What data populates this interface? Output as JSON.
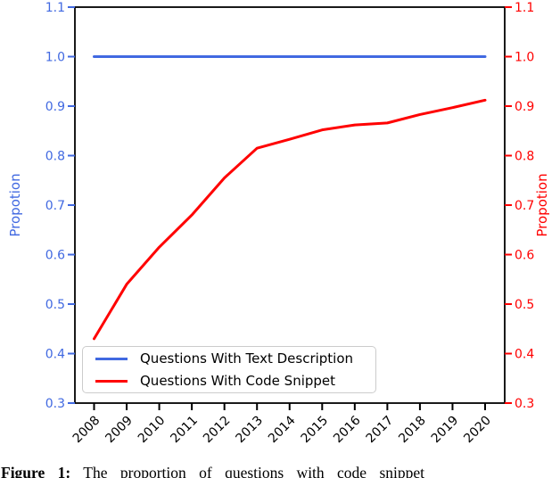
{
  "figure": {
    "caption_label": "Figure 1:",
    "caption_text": "The proportion of questions with code snippet"
  },
  "chart_data": {
    "type": "line",
    "x": [
      2008,
      2009,
      2010,
      2011,
      2012,
      2013,
      2014,
      2015,
      2016,
      2017,
      2018,
      2019,
      2020
    ],
    "x_tick_labels": [
      "2008",
      "2009",
      "2010",
      "2011",
      "2012",
      "2013",
      "2014",
      "2015",
      "2016",
      "2017",
      "2018",
      "2019",
      "2020"
    ],
    "x_tick_rotation": -45,
    "series": [
      {
        "name": "Questions With Text Description",
        "color": "#4169e1",
        "axis": "left",
        "values": [
          1.0,
          1.0,
          1.0,
          1.0,
          1.0,
          1.0,
          1.0,
          1.0,
          1.0,
          1.0,
          1.0,
          1.0,
          1.0
        ]
      },
      {
        "name": "Questions With Code Snippet",
        "color": "#ff0000",
        "axis": "right",
        "values": [
          0.43,
          0.54,
          0.615,
          0.68,
          0.755,
          0.815,
          0.833,
          0.852,
          0.862,
          0.866,
          0.883,
          0.897,
          0.912
        ]
      }
    ],
    "y_left": {
      "label": "Propotion",
      "color": "#4169e1",
      "range": [
        0.3,
        1.1
      ],
      "ticks": [
        "1.1",
        "1.0",
        "0.9",
        "0.8",
        "0.7",
        "0.6",
        "0.5",
        "0.4",
        "0.3"
      ]
    },
    "y_right": {
      "label": "Propotion",
      "color": "#ff0000",
      "range": [
        0.3,
        1.1
      ],
      "ticks": [
        "1.1",
        "1.0",
        "0.9",
        "0.8",
        "0.7",
        "0.6",
        "0.5",
        "0.4",
        "0.3"
      ]
    },
    "grid": false,
    "legend": {
      "position": "lower-left",
      "entries": [
        "Questions With Text Description",
        "Questions With Code Snippet"
      ]
    }
  }
}
